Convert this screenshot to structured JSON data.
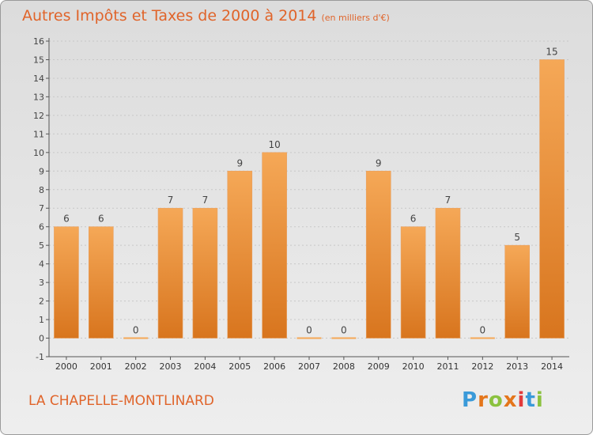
{
  "header": {
    "title": "Autres Impôts et Taxes de 2000 à 2014",
    "unit": "(en milliers d'€)"
  },
  "footer": {
    "commune": "LA CHAPELLE-MONTLINARD",
    "logo_text": "Proxiti",
    "logo_colors": [
      "#3a9ad9",
      "#e4761b",
      "#8bc23f",
      "#e4761b",
      "#e23b3b",
      "#3a9ad9",
      "#8bc23f"
    ]
  },
  "colors": {
    "bar_light": "#f5a857",
    "bar_dark": "#d8751e",
    "title": "#e0642a",
    "axis": "#555555",
    "grid": "#c8c8c8"
  },
  "chart_data": {
    "type": "bar",
    "title": "Autres Impôts et Taxes de 2000 à 2014",
    "subtitle": "(en milliers d'€)",
    "xlabel": "",
    "ylabel": "",
    "categories": [
      "2000",
      "2001",
      "2002",
      "2003",
      "2004",
      "2005",
      "2006",
      "2007",
      "2008",
      "2009",
      "2010",
      "2011",
      "2012",
      "2013",
      "2014"
    ],
    "values": [
      6,
      6,
      0,
      7,
      7,
      9,
      10,
      0,
      0,
      9,
      6,
      7,
      0,
      5,
      15
    ],
    "ylim": [
      -1,
      16
    ],
    "yticks": [
      -1,
      0,
      1,
      2,
      3,
      4,
      5,
      6,
      7,
      8,
      9,
      10,
      11,
      12,
      13,
      14,
      15,
      16
    ],
    "grid": "horizontal"
  }
}
